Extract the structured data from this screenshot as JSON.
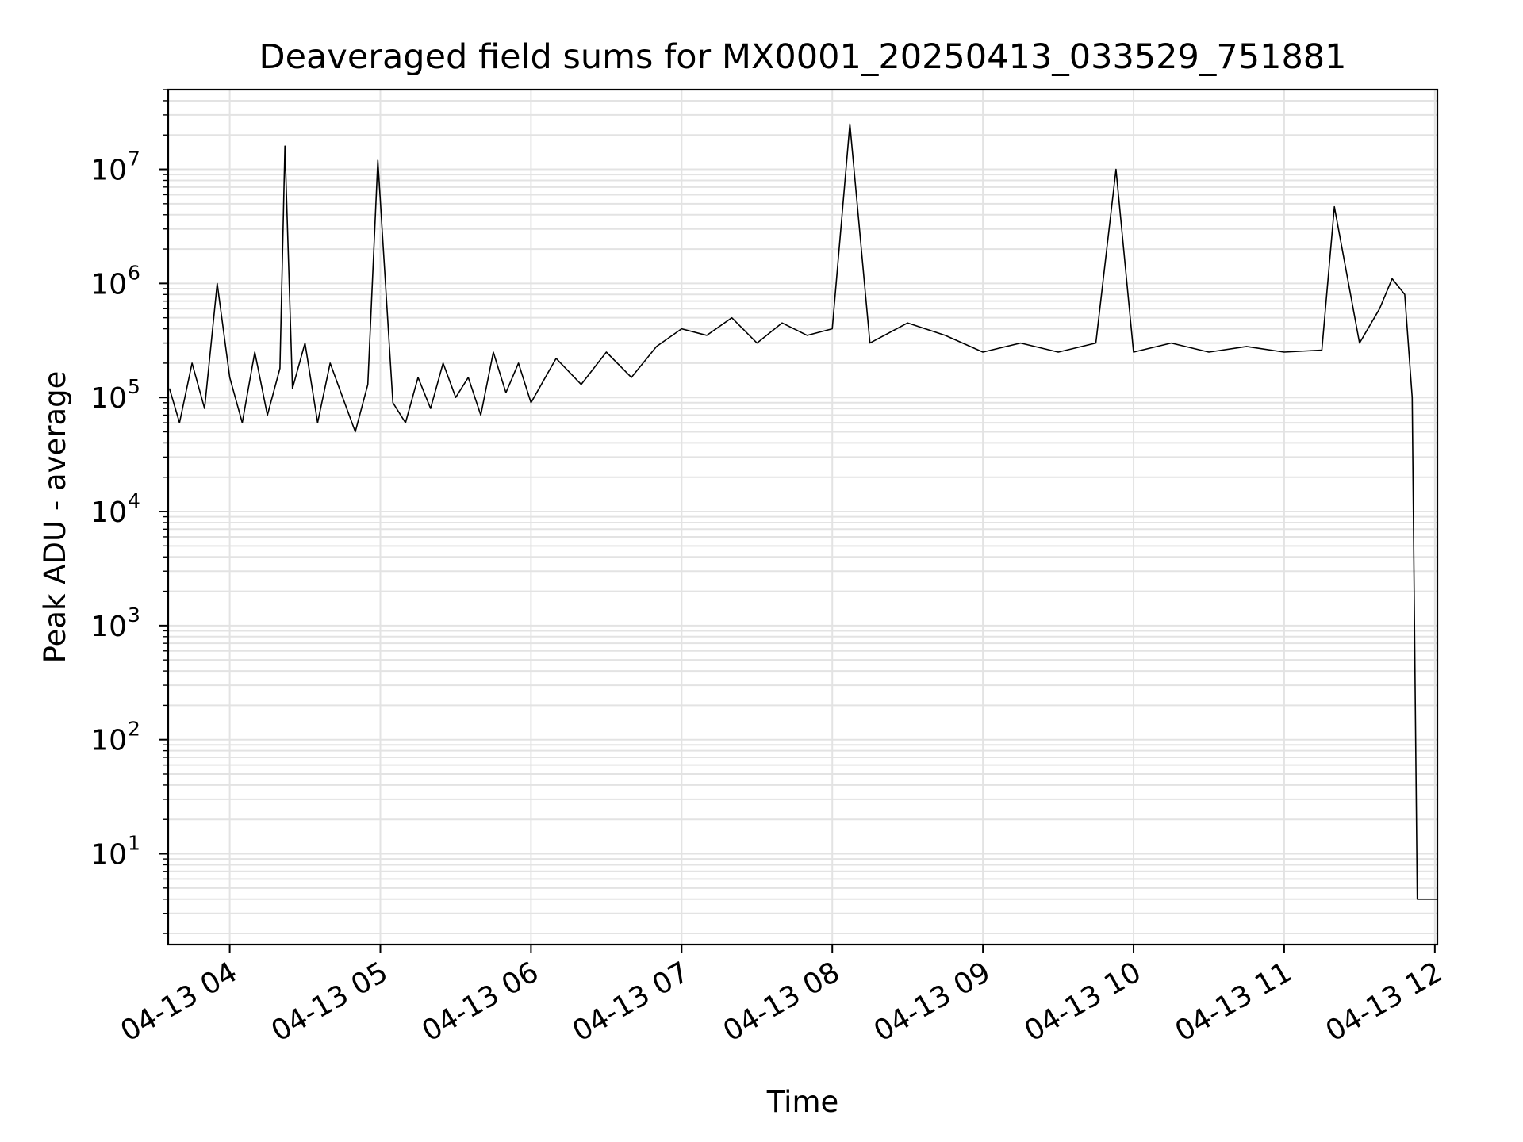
{
  "chart_data": {
    "type": "line",
    "title": "Deaveraged field sums for MX0001_20250413_033529_751881",
    "xlabel": "Time",
    "ylabel": "Peak ADU - average",
    "y_scale": "log",
    "x_range": [
      "2025-04-13T03:35:29",
      "2025-04-13T12:01:00"
    ],
    "ylim": [
      1.6,
      50000000
    ],
    "grid": true,
    "x_ticks": [
      "04-13 04",
      "04-13 05",
      "04-13 06",
      "04-13 07",
      "04-13 08",
      "04-13 09",
      "04-13 10",
      "04-13 11",
      "04-13 12"
    ],
    "x_tick_times": [
      "2025-04-13T04:00",
      "2025-04-13T05:00",
      "2025-04-13T06:00",
      "2025-04-13T07:00",
      "2025-04-13T08:00",
      "2025-04-13T09:00",
      "2025-04-13T10:00",
      "2025-04-13T11:00",
      "2025-04-13T12:00"
    ],
    "y_tick_base": "10",
    "y_tick_exponents": [
      "1",
      "2",
      "3",
      "4",
      "5",
      "6",
      "7"
    ],
    "line_color": "#000000",
    "grid_color": "#e3e3e3",
    "series": [
      {
        "points": [
          [
            "2025-04-13T03:36",
            120000
          ],
          [
            "2025-04-13T03:40",
            60000
          ],
          [
            "2025-04-13T03:45",
            200000
          ],
          [
            "2025-04-13T03:50",
            80000
          ],
          [
            "2025-04-13T03:55",
            1000000
          ],
          [
            "2025-04-13T04:00",
            150000
          ],
          [
            "2025-04-13T04:05",
            60000
          ],
          [
            "2025-04-13T04:10",
            250000
          ],
          [
            "2025-04-13T04:15",
            70000
          ],
          [
            "2025-04-13T04:20",
            180000
          ],
          [
            "2025-04-13T04:22",
            16000000
          ],
          [
            "2025-04-13T04:25",
            120000
          ],
          [
            "2025-04-13T04:30",
            300000
          ],
          [
            "2025-04-13T04:35",
            60000
          ],
          [
            "2025-04-13T04:40",
            200000
          ],
          [
            "2025-04-13T04:45",
            100000
          ],
          [
            "2025-04-13T04:50",
            50000
          ],
          [
            "2025-04-13T04:55",
            130000
          ],
          [
            "2025-04-13T04:59",
            12000000
          ],
          [
            "2025-04-13T05:05",
            90000
          ],
          [
            "2025-04-13T05:10",
            60000
          ],
          [
            "2025-04-13T05:15",
            150000
          ],
          [
            "2025-04-13T05:20",
            80000
          ],
          [
            "2025-04-13T05:25",
            200000
          ],
          [
            "2025-04-13T05:30",
            100000
          ],
          [
            "2025-04-13T05:35",
            150000
          ],
          [
            "2025-04-13T05:40",
            70000
          ],
          [
            "2025-04-13T05:45",
            250000
          ],
          [
            "2025-04-13T05:50",
            110000
          ],
          [
            "2025-04-13T05:55",
            200000
          ],
          [
            "2025-04-13T06:00",
            90000
          ],
          [
            "2025-04-13T06:10",
            220000
          ],
          [
            "2025-04-13T06:20",
            130000
          ],
          [
            "2025-04-13T06:30",
            250000
          ],
          [
            "2025-04-13T06:40",
            150000
          ],
          [
            "2025-04-13T06:50",
            280000
          ],
          [
            "2025-04-13T07:00",
            400000
          ],
          [
            "2025-04-13T07:10",
            350000
          ],
          [
            "2025-04-13T07:20",
            500000
          ],
          [
            "2025-04-13T07:30",
            300000
          ],
          [
            "2025-04-13T07:40",
            450000
          ],
          [
            "2025-04-13T07:50",
            350000
          ],
          [
            "2025-04-13T08:00",
            400000
          ],
          [
            "2025-04-13T08:07",
            25000000
          ],
          [
            "2025-04-13T08:15",
            300000
          ],
          [
            "2025-04-13T08:30",
            450000
          ],
          [
            "2025-04-13T08:45",
            350000
          ],
          [
            "2025-04-13T09:00",
            250000
          ],
          [
            "2025-04-13T09:15",
            300000
          ],
          [
            "2025-04-13T09:30",
            250000
          ],
          [
            "2025-04-13T09:45",
            300000
          ],
          [
            "2025-04-13T09:53",
            10000000
          ],
          [
            "2025-04-13T10:00",
            250000
          ],
          [
            "2025-04-13T10:15",
            300000
          ],
          [
            "2025-04-13T10:30",
            250000
          ],
          [
            "2025-04-13T10:45",
            280000
          ],
          [
            "2025-04-13T11:00",
            250000
          ],
          [
            "2025-04-13T11:15",
            260000
          ],
          [
            "2025-04-13T11:20",
            4700000
          ],
          [
            "2025-04-13T11:30",
            300000
          ],
          [
            "2025-04-13T11:38",
            600000
          ],
          [
            "2025-04-13T11:43",
            1100000
          ],
          [
            "2025-04-13T11:48",
            800000
          ],
          [
            "2025-04-13T11:51",
            100000
          ],
          [
            "2025-04-13T11:53",
            4
          ],
          [
            "2025-04-13T12:01",
            4
          ]
        ]
      }
    ]
  }
}
